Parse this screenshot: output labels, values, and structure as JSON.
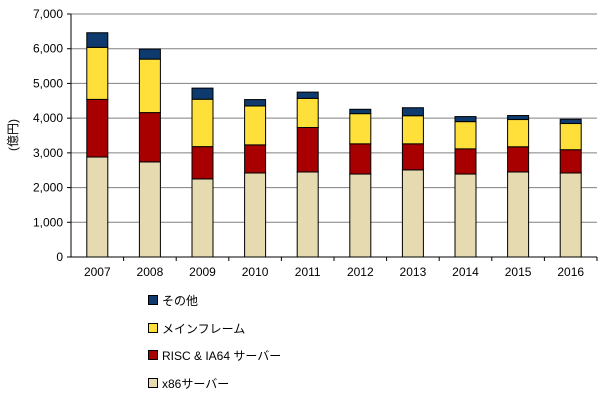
{
  "chart_data": {
    "type": "bar",
    "stacked": true,
    "title": "",
    "xlabel": "",
    "ylabel": "(億円)",
    "ylim": [
      0,
      7000
    ],
    "yticks": [
      0,
      1000,
      2000,
      3000,
      4000,
      5000,
      6000,
      7000
    ],
    "ytick_labels": [
      "0",
      "1,000",
      "2,000",
      "3,000",
      "4,000",
      "5,000",
      "6,000",
      "7,000"
    ],
    "grid": true,
    "legend_position": "bottom-left",
    "categories": [
      "2007",
      "2008",
      "2009",
      "2010",
      "2011",
      "2012",
      "2013",
      "2014",
      "2015",
      "2016"
    ],
    "series": [
      {
        "name": "x86サーバー",
        "color": "#E6DAB0",
        "values": [
          2880,
          2740,
          2250,
          2420,
          2450,
          2390,
          2510,
          2390,
          2450,
          2420
        ]
      },
      {
        "name": "RISC & IA64 サーバー",
        "color": "#A80000",
        "values": [
          1660,
          1420,
          930,
          810,
          1280,
          870,
          750,
          725,
          725,
          670
        ]
      },
      {
        "name": "メインフレーム",
        "color": "#FFE03A",
        "values": [
          1500,
          1540,
          1365,
          1120,
          840,
          870,
          810,
          785,
          785,
          755
        ]
      },
      {
        "name": "その他",
        "color": "#0E3A6E",
        "values": [
          420,
          290,
          320,
          185,
          180,
          125,
          230,
          145,
          115,
          125
        ]
      }
    ]
  }
}
